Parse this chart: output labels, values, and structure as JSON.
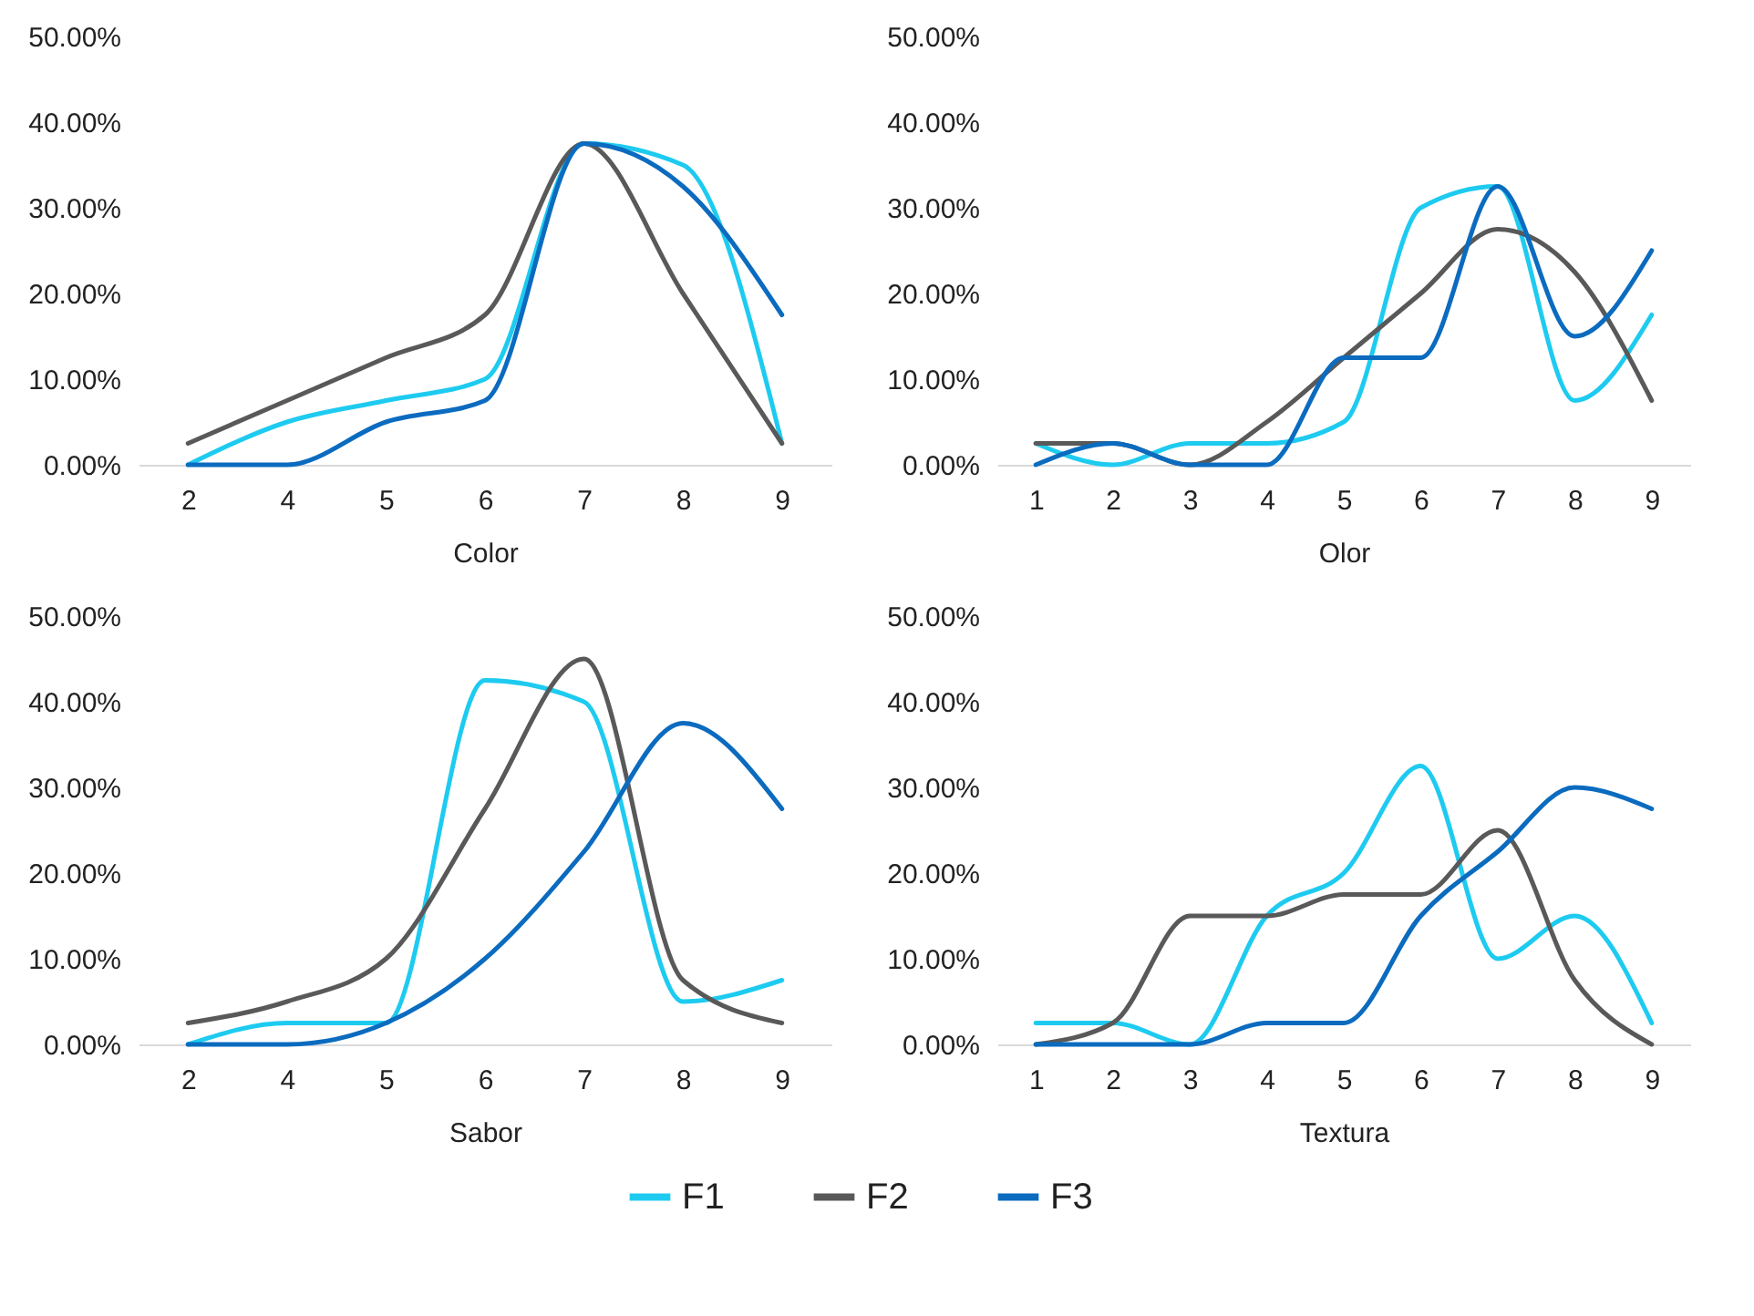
{
  "chart_data": [
    {
      "type": "line",
      "xlabel": "Color",
      "categories": [
        "2",
        "4",
        "5",
        "6",
        "7",
        "8",
        "9"
      ],
      "ylim": [
        0,
        50
      ],
      "yticks": [
        {
          "value": 0,
          "label": "0.00%"
        },
        {
          "value": 10,
          "label": "10.00%"
        },
        {
          "value": 20,
          "label": "20.00%"
        },
        {
          "value": 30,
          "label": "30.00%"
        },
        {
          "value": 40,
          "label": "40.00%"
        },
        {
          "value": 50,
          "label": "50.00%"
        }
      ],
      "legend": "bottom",
      "series": [
        {
          "name": "F1",
          "color": "#1ecbf0",
          "values": [
            0,
            5,
            7.5,
            10,
            37.5,
            35,
            2.5
          ]
        },
        {
          "name": "F2",
          "color": "#595959",
          "values": [
            2.5,
            7.5,
            12.5,
            17.5,
            37.5,
            20,
            2.5
          ]
        },
        {
          "name": "F3",
          "color": "#0b6bbf",
          "values": [
            0,
            0,
            5,
            7.5,
            37.5,
            32.5,
            17.5
          ]
        }
      ]
    },
    {
      "type": "line",
      "xlabel": "Olor",
      "categories": [
        "1",
        "2",
        "3",
        "4",
        "5",
        "6",
        "7",
        "8",
        "9"
      ],
      "ylim": [
        0,
        50
      ],
      "yticks": [
        {
          "value": 0,
          "label": "0.00%"
        },
        {
          "value": 10,
          "label": "10.00%"
        },
        {
          "value": 20,
          "label": "20.00%"
        },
        {
          "value": 30,
          "label": "30.00%"
        },
        {
          "value": 40,
          "label": "40.00%"
        },
        {
          "value": 50,
          "label": "50.00%"
        }
      ],
      "legend": "bottom",
      "series": [
        {
          "name": "F1",
          "color": "#1ecbf0",
          "values": [
            2.5,
            0,
            2.5,
            2.5,
            5,
            30,
            32.5,
            7.5,
            17.5
          ]
        },
        {
          "name": "F2",
          "color": "#595959",
          "values": [
            2.5,
            2.5,
            0,
            5,
            12.5,
            20,
            27.5,
            22.5,
            7.5
          ]
        },
        {
          "name": "F3",
          "color": "#0b6bbf",
          "values": [
            0,
            2.5,
            0,
            0,
            12.5,
            12.5,
            32.5,
            15,
            25
          ]
        }
      ]
    },
    {
      "type": "line",
      "xlabel": "Sabor",
      "categories": [
        "2",
        "4",
        "5",
        "6",
        "7",
        "8",
        "9"
      ],
      "ylim": [
        0,
        50
      ],
      "yticks": [
        {
          "value": 0,
          "label": "0.00%"
        },
        {
          "value": 10,
          "label": "10.00%"
        },
        {
          "value": 20,
          "label": "20.00%"
        },
        {
          "value": 30,
          "label": "30.00%"
        },
        {
          "value": 40,
          "label": "40.00%"
        },
        {
          "value": 50,
          "label": "50.00%"
        }
      ],
      "legend": "bottom",
      "series": [
        {
          "name": "F1",
          "color": "#1ecbf0",
          "values": [
            0,
            2.5,
            2.5,
            42.5,
            40,
            5,
            7.5
          ]
        },
        {
          "name": "F2",
          "color": "#595959",
          "values": [
            2.5,
            5,
            10,
            27.5,
            45,
            7.5,
            2.5
          ]
        },
        {
          "name": "F3",
          "color": "#0b6bbf",
          "values": [
            0,
            0,
            2.5,
            10,
            22.5,
            37.5,
            27.5
          ]
        }
      ]
    },
    {
      "type": "line",
      "xlabel": "Textura",
      "categories": [
        "1",
        "2",
        "3",
        "4",
        "5",
        "6",
        "7",
        "8",
        "9"
      ],
      "ylim": [
        0,
        50
      ],
      "yticks": [
        {
          "value": 0,
          "label": "0.00%"
        },
        {
          "value": 10,
          "label": "10.00%"
        },
        {
          "value": 20,
          "label": "20.00%"
        },
        {
          "value": 30,
          "label": "30.00%"
        },
        {
          "value": 40,
          "label": "40.00%"
        },
        {
          "value": 50,
          "label": "50.00%"
        }
      ],
      "legend": "bottom",
      "series": [
        {
          "name": "F1",
          "color": "#1ecbf0",
          "values": [
            2.5,
            2.5,
            0,
            15,
            20,
            32.5,
            10,
            15,
            2.5
          ]
        },
        {
          "name": "F2",
          "color": "#595959",
          "values": [
            0,
            2.5,
            15,
            15,
            17.5,
            17.5,
            25,
            7.5,
            0
          ]
        },
        {
          "name": "F3",
          "color": "#0b6bbf",
          "values": [
            0,
            0,
            0,
            2.5,
            2.5,
            15,
            22.5,
            30,
            27.5
          ]
        }
      ]
    }
  ]
}
